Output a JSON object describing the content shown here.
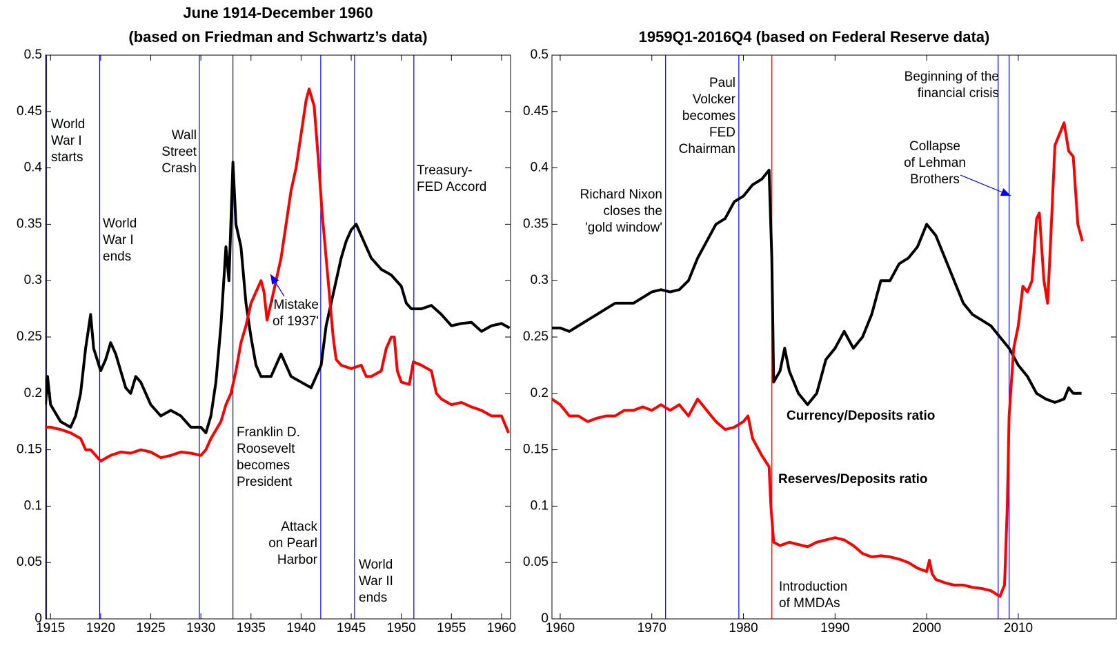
{
  "chart_data": [
    {
      "type": "line",
      "title": "June 1914-December 1960",
      "subtitle": "(based on Friedman and Schwartz’s data)",
      "xlim": [
        1914.5,
        1960.9
      ],
      "xticks": [
        1915,
        1920,
        1925,
        1930,
        1935,
        1940,
        1945,
        1950,
        1955,
        1960
      ],
      "ylim": [
        0,
        0.5
      ],
      "yticks": [
        0,
        0.05,
        0.1,
        0.15,
        0.2,
        0.25,
        0.3,
        0.35,
        0.4,
        0.45,
        0.5
      ],
      "series": [
        {
          "color": "#000000",
          "x": [
            1914.5,
            1914.7,
            1915,
            1916,
            1917,
            1917.5,
            1918,
            1918.5,
            1919,
            1919.3,
            1920,
            1920.5,
            1921,
            1921.5,
            1922,
            1922.5,
            1923,
            1923.5,
            1924,
            1924.5,
            1925,
            1926,
            1927,
            1928,
            1929,
            1930,
            1930.5,
            1931,
            1931.5,
            1932,
            1932.5,
            1932.8,
            1933.2,
            1933.5,
            1934,
            1934.5,
            1935,
            1935.5,
            1936,
            1937,
            1938,
            1938.5,
            1939,
            1940,
            1941,
            1942,
            1942.5,
            1943,
            1943.5,
            1944,
            1944.5,
            1945,
            1945.5,
            1946,
            1947,
            1948,
            1949,
            1950,
            1950.5,
            1951,
            1952,
            1953,
            1954,
            1955,
            1956,
            1957,
            1958,
            1959,
            1960,
            1960.8
          ],
          "values": [
            0.19,
            0.215,
            0.19,
            0.175,
            0.17,
            0.18,
            0.2,
            0.24,
            0.27,
            0.24,
            0.22,
            0.23,
            0.245,
            0.235,
            0.22,
            0.205,
            0.2,
            0.215,
            0.21,
            0.2,
            0.19,
            0.18,
            0.185,
            0.18,
            0.17,
            0.17,
            0.165,
            0.18,
            0.21,
            0.26,
            0.33,
            0.3,
            0.405,
            0.35,
            0.33,
            0.28,
            0.25,
            0.225,
            0.215,
            0.215,
            0.235,
            0.225,
            0.215,
            0.21,
            0.205,
            0.225,
            0.26,
            0.28,
            0.3,
            0.32,
            0.335,
            0.345,
            0.35,
            0.34,
            0.32,
            0.31,
            0.305,
            0.295,
            0.28,
            0.275,
            0.275,
            0.278,
            0.27,
            0.26,
            0.262,
            0.263,
            0.255,
            0.26,
            0.262,
            0.258
          ]
        },
        {
          "color": "#ff0000",
          "x": [
            1914.5,
            1915,
            1916,
            1917,
            1918,
            1918.5,
            1919,
            1920,
            1921,
            1922,
            1923,
            1924,
            1925,
            1926,
            1927,
            1928,
            1929,
            1930,
            1930.5,
            1931,
            1932,
            1932.5,
            1933,
            1933.5,
            1934,
            1934.5,
            1935,
            1935.5,
            1936,
            1936.3,
            1936.6,
            1937,
            1937.5,
            1938,
            1938.5,
            1939,
            1939.5,
            1940,
            1940.5,
            1940.8,
            1941.3,
            1941.7,
            1942.1,
            1942.5,
            1942.8,
            1943.2,
            1943.5,
            1944,
            1945,
            1946,
            1946.5,
            1947,
            1948,
            1948.5,
            1949,
            1949.3,
            1949.6,
            1950,
            1950.8,
            1951.2,
            1952,
            1953,
            1953.5,
            1954,
            1955,
            1956,
            1957,
            1958,
            1959,
            1960,
            1960.7
          ],
          "values": [
            0.17,
            0.17,
            0.168,
            0.165,
            0.16,
            0.15,
            0.15,
            0.14,
            0.145,
            0.148,
            0.147,
            0.15,
            0.148,
            0.143,
            0.145,
            0.148,
            0.147,
            0.145,
            0.15,
            0.16,
            0.175,
            0.19,
            0.2,
            0.22,
            0.245,
            0.26,
            0.28,
            0.29,
            0.3,
            0.29,
            0.265,
            0.28,
            0.3,
            0.32,
            0.35,
            0.38,
            0.4,
            0.43,
            0.46,
            0.47,
            0.455,
            0.41,
            0.36,
            0.32,
            0.29,
            0.25,
            0.23,
            0.225,
            0.222,
            0.225,
            0.215,
            0.215,
            0.22,
            0.24,
            0.25,
            0.25,
            0.22,
            0.21,
            0.208,
            0.228,
            0.225,
            0.22,
            0.2,
            0.195,
            0.19,
            0.192,
            0.188,
            0.185,
            0.18,
            0.18,
            0.165
          ]
        }
      ],
      "annotations": [
        {
          "text": [
            "World",
            "War I",
            "starts"
          ],
          "x": 1914.6,
          "color": "#0000ff"
        },
        {
          "text": [
            "World",
            "War I",
            "ends"
          ],
          "x": 1919.9,
          "color": "#0000ff"
        },
        {
          "text": [
            "Wall",
            "Street",
            "Crash"
          ],
          "x": 1929.85,
          "color": "#0000ff"
        },
        {
          "text": [
            "Franklin D.",
            "Roosevelt",
            "becomes",
            "President"
          ],
          "x": 1933.2,
          "color": "#0000ff"
        },
        {
          "text": [
            "Attack",
            "on Pearl",
            "Harbor"
          ],
          "x": 1941.96,
          "color": "#0000ff"
        },
        {
          "text": [
            "World",
            "War II",
            "ends"
          ],
          "x": 1945.33,
          "color": "#0000ff"
        },
        {
          "text": [
            "Treasury-",
            "FED Accord"
          ],
          "x": 1951.25,
          "color": "#0000ff"
        },
        {
          "text": [
            "'Mistake",
            "of 1937'"
          ],
          "color": "#0000ff"
        }
      ]
    },
    {
      "type": "line",
      "title": "1959Q1-2016Q4 (based on Federal Reserve data)",
      "xlim": [
        1959.1,
        2020.7
      ],
      "xticks": [
        1960,
        1970,
        1980,
        1990,
        2000,
        2010
      ],
      "ylim": [
        0,
        0.5
      ],
      "yticks": [
        0,
        0.05,
        0.1,
        0.15,
        0.2,
        0.25,
        0.3,
        0.35,
        0.4,
        0.45,
        0.5
      ],
      "series": [
        {
          "name": "Currency/Deposits ratio",
          "color": "#000000",
          "x": [
            1959.1,
            1960,
            1961,
            1962,
            1963,
            1964,
            1965,
            1966,
            1967,
            1968,
            1969,
            1970,
            1971,
            1972,
            1973,
            1974,
            1975,
            1976,
            1977,
            1978,
            1979,
            1980,
            1981,
            1982,
            1982.8,
            1983.1,
            1983.3,
            1984,
            1984.5,
            1985,
            1986,
            1987,
            1988,
            1989,
            1990,
            1991,
            1992,
            1993,
            1994,
            1995,
            1996,
            1997,
            1998,
            1999,
            2000,
            2001,
            2002,
            2003,
            2004,
            2005,
            2006,
            2007,
            2008,
            2009,
            2010,
            2011,
            2012,
            2013,
            2014,
            2015,
            2015.5,
            2016,
            2016.9
          ],
          "values": [
            0.258,
            0.258,
            0.255,
            0.26,
            0.265,
            0.27,
            0.275,
            0.28,
            0.28,
            0.28,
            0.285,
            0.29,
            0.292,
            0.29,
            0.292,
            0.3,
            0.32,
            0.335,
            0.35,
            0.355,
            0.37,
            0.375,
            0.385,
            0.39,
            0.398,
            0.32,
            0.21,
            0.22,
            0.24,
            0.22,
            0.2,
            0.19,
            0.2,
            0.23,
            0.24,
            0.255,
            0.24,
            0.25,
            0.27,
            0.3,
            0.3,
            0.315,
            0.32,
            0.33,
            0.35,
            0.34,
            0.32,
            0.3,
            0.28,
            0.27,
            0.265,
            0.26,
            0.25,
            0.24,
            0.225,
            0.215,
            0.2,
            0.195,
            0.192,
            0.195,
            0.205,
            0.2,
            0.2
          ]
        },
        {
          "name": "Reserves/Deposits ratio",
          "color": "#ff0000",
          "x": [
            1959.1,
            1960,
            1961,
            1962,
            1963,
            1964,
            1965,
            1966,
            1967,
            1968,
            1969,
            1970,
            1971,
            1972,
            1973,
            1974,
            1975,
            1976,
            1977,
            1978,
            1979,
            1980,
            1980.5,
            1981,
            1982,
            1982.8,
            1983,
            1983.3,
            1984,
            1985,
            1986,
            1987,
            1988,
            1989,
            1990,
            1991,
            1992,
            1993,
            1994,
            1995,
            1996,
            1997,
            1998,
            1999,
            2000,
            2000.3,
            2000.6,
            2001,
            2002,
            2003,
            2004,
            2005,
            2006,
            2007,
            2008,
            2008.5,
            2008.8,
            2009,
            2009.5,
            2010,
            2010.5,
            2011,
            2011.5,
            2012,
            2012.3,
            2012.8,
            2013.2,
            2013.5,
            2014,
            2014.5,
            2015,
            2015.5,
            2016,
            2016.5,
            2017
          ],
          "values": [
            0.195,
            0.19,
            0.18,
            0.18,
            0.175,
            0.178,
            0.18,
            0.18,
            0.185,
            0.185,
            0.188,
            0.185,
            0.19,
            0.185,
            0.19,
            0.18,
            0.195,
            0.185,
            0.175,
            0.168,
            0.17,
            0.175,
            0.18,
            0.16,
            0.145,
            0.135,
            0.1,
            0.068,
            0.065,
            0.068,
            0.066,
            0.064,
            0.068,
            0.07,
            0.072,
            0.07,
            0.065,
            0.058,
            0.055,
            0.056,
            0.055,
            0.053,
            0.05,
            0.045,
            0.042,
            0.052,
            0.04,
            0.035,
            0.032,
            0.03,
            0.03,
            0.028,
            0.027,
            0.025,
            0.02,
            0.03,
            0.1,
            0.18,
            0.24,
            0.26,
            0.295,
            0.29,
            0.3,
            0.355,
            0.36,
            0.3,
            0.28,
            0.33,
            0.42,
            0.43,
            0.44,
            0.415,
            0.41,
            0.35,
            0.335
          ]
        }
      ],
      "annotations": [
        {
          "text": [
            "Richard Nixon",
            "closes the",
            "'gold window'"
          ],
          "x": 1971.5,
          "color": "#0000ff"
        },
        {
          "text": [
            "Paul",
            "Volcker",
            "becomes",
            "FED",
            "Chairman"
          ],
          "x": 1979.5,
          "color": "#0000ff"
        },
        {
          "text": [
            "Introduction",
            "of MMDAs"
          ],
          "x": 1983.1,
          "color": "#ff0000"
        },
        {
          "text": [
            "Beginning of the",
            "financial crisis"
          ],
          "x": 2007.8,
          "color": "#0000ff"
        },
        {
          "text": [
            "Collapse",
            "of Lehman",
            "Brothers"
          ],
          "x": 2009.0,
          "color": "#0000ff"
        }
      ]
    }
  ]
}
